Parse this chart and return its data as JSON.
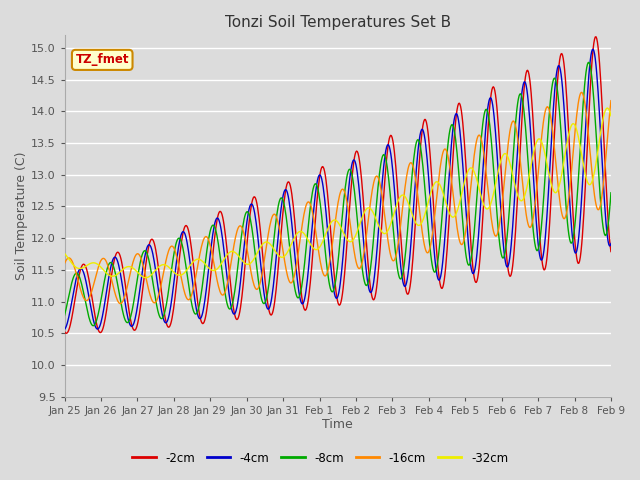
{
  "title": "Tonzi Soil Temperatures Set B",
  "xlabel": "Time",
  "ylabel": "Soil Temperature (C)",
  "ylim": [
    9.5,
    15.2
  ],
  "background_color": "#dcdcdc",
  "plot_bg_color": "#dcdcdc",
  "grid_color": "white",
  "annotation_text": "TZ_fmet",
  "annotation_bg": "#ffffcc",
  "annotation_border": "#cc8800",
  "annotation_text_color": "#cc0000",
  "series": [
    {
      "label": "-2cm",
      "color": "#dd0000"
    },
    {
      "label": "-4cm",
      "color": "#0000cc"
    },
    {
      "label": "-8cm",
      "color": "#00aa00"
    },
    {
      "label": "-16cm",
      "color": "#ff8800"
    },
    {
      "label": "-32cm",
      "color": "#eeee00"
    }
  ],
  "xtick_labels": [
    "Jan 25",
    "Jan 26",
    "Jan 27",
    "Jan 28",
    "Jan 29",
    "Jan 30",
    "Jan 31",
    "Feb 1",
    "Feb 2",
    "Feb 3",
    "Feb 4",
    "Feb 5",
    "Feb 6",
    "Feb 7",
    "Feb 8",
    "Feb 9"
  ],
  "ytick_labels": [
    "9.5",
    "10.0",
    "10.5",
    "11.0",
    "11.5",
    "12.0",
    "12.5",
    "13.0",
    "13.5",
    "14.0",
    "14.5",
    "15.0"
  ],
  "ytick_vals": [
    9.5,
    10.0,
    10.5,
    11.0,
    11.5,
    12.0,
    12.5,
    13.0,
    13.5,
    14.0,
    14.5,
    15.0
  ],
  "n_days": 16,
  "pts_per_day": 48
}
